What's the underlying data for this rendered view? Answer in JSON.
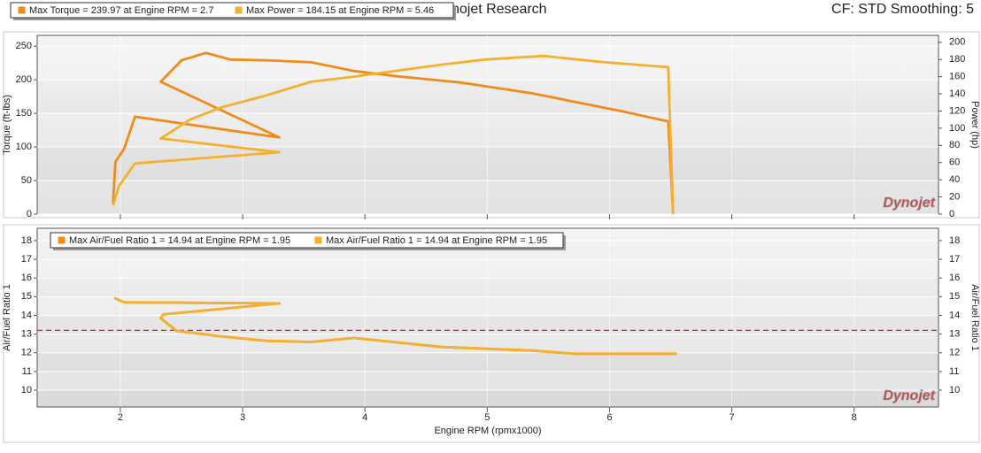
{
  "header": {
    "title": "Dynojet Research",
    "info": "CF: STD Smoothing: 5"
  },
  "chart_data": [
    {
      "type": "line",
      "ylabel": "Torque (ft-lbs)",
      "y2label": "Power (hp)",
      "watermark": "Dynojet",
      "xlim": [
        1.32,
        8.69
      ],
      "xticks": [
        2,
        3,
        4,
        5,
        6,
        7,
        8
      ],
      "ylim": [
        0,
        266
      ],
      "yticks": [
        0,
        50,
        100,
        150,
        200,
        250
      ],
      "y2lim": [
        0,
        208
      ],
      "y2ticks": [
        0,
        20,
        40,
        60,
        80,
        100,
        120,
        140,
        160,
        180,
        200
      ],
      "grid": true,
      "series": [
        {
          "name": "Max Torque = 239.97 at Engine RPM = 2.7",
          "color": "#f08c1c",
          "axis": "y",
          "x": [
            1.94,
            1.96,
            2.03,
            2.12,
            3.3,
            2.33,
            2.5,
            2.7,
            2.9,
            3.19,
            3.56,
            3.91,
            4.27,
            4.78,
            5.36,
            6.08,
            6.48,
            6.52
          ],
          "values": [
            16,
            78,
            97,
            145,
            114,
            197,
            229,
            239.97,
            230,
            229,
            226,
            213,
            205,
            196,
            180,
            154,
            138,
            0
          ]
        },
        {
          "name": "Max Power = 184.15 at Engine RPM = 5.46",
          "color": "#f5b030",
          "axis": "y2",
          "x": [
            1.94,
            1.99,
            2.12,
            3.3,
            2.33,
            2.57,
            2.82,
            3.19,
            3.56,
            3.91,
            4.27,
            4.63,
            4.99,
            5.46,
            5.94,
            6.48,
            6.52
          ],
          "values": [
            10,
            33,
            59,
            72,
            88,
            110,
            124,
            138,
            154,
            160,
            167,
            174,
            180,
            184.15,
            177,
            171,
            0
          ]
        }
      ]
    },
    {
      "type": "line",
      "ylabel": "Air/Fuel Ratio 1",
      "y2label": "Air/Fuel Ratio 1",
      "xlabel": "Engine RPM (rpmx1000)",
      "watermark": "Dynojet",
      "xlim": [
        1.32,
        8.69
      ],
      "xticks": [
        2,
        3,
        4,
        5,
        6,
        7,
        8
      ],
      "ylim": [
        9.1,
        18.66
      ],
      "yticks": [
        10,
        11,
        12,
        13,
        14,
        15,
        16,
        17,
        18
      ],
      "y2lim": [
        9.1,
        18.66
      ],
      "y2ticks": [
        10,
        11,
        12,
        13,
        14,
        15,
        16,
        17,
        18
      ],
      "grid": true,
      "reference_line": {
        "value": 13.2,
        "color": "#e02020"
      },
      "series": [
        {
          "name": "Max Air/Fuel Ratio 1 = 14.94 at Engine RPM = 1.95",
          "color": "#f08c1c",
          "axis": "y",
          "x": [
            1.95,
            2.03,
            3.3,
            2.35,
            2.33,
            2.46,
            2.82,
            3.19,
            3.56,
            3.91,
            4.63,
            5.36,
            5.72,
            6.55
          ],
          "values": [
            14.94,
            14.7,
            14.64,
            14.05,
            13.85,
            13.17,
            12.88,
            12.64,
            12.58,
            12.79,
            12.31,
            12.12,
            11.95,
            11.95
          ]
        },
        {
          "name": "Max Air/Fuel Ratio 1 = 14.94 at Engine RPM = 1.95",
          "color": "#f5b030",
          "axis": "y",
          "x": [
            1.95,
            2.03,
            3.3,
            2.35,
            2.33,
            2.46,
            2.82,
            3.19,
            3.56,
            3.91,
            4.63,
            5.36,
            5.72,
            6.55
          ],
          "values": [
            14.94,
            14.7,
            14.64,
            14.05,
            13.85,
            13.17,
            12.88,
            12.64,
            12.58,
            12.79,
            12.31,
            12.12,
            11.95,
            11.95
          ]
        }
      ]
    }
  ]
}
